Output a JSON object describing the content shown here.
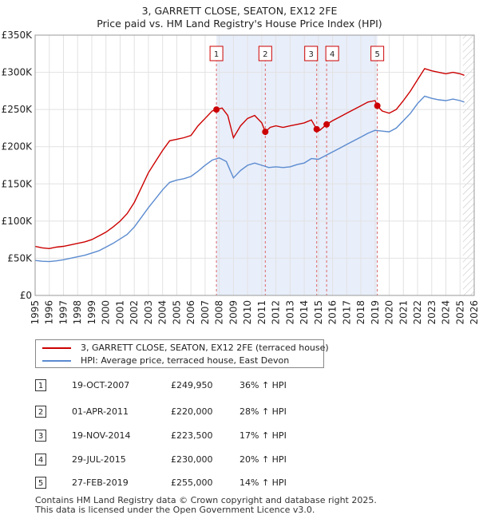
{
  "chart_data": {
    "type": "line",
    "title": "3, GARRETT CLOSE, SEATON, EX12 2FE",
    "subtitle": "Price paid vs. HM Land Registry's House Price Index (HPI)",
    "xlabel": "",
    "ylabel": "",
    "xlim": [
      1995,
      2026
    ],
    "ylim": [
      0,
      350000
    ],
    "x_ticks": [
      "1995",
      "1996",
      "1997",
      "1998",
      "1999",
      "2000",
      "2001",
      "2002",
      "2003",
      "2004",
      "2005",
      "2006",
      "2007",
      "2008",
      "2009",
      "2010",
      "2011",
      "2012",
      "2013",
      "2014",
      "2015",
      "2016",
      "2017",
      "2018",
      "2019",
      "2020",
      "2021",
      "2022",
      "2023",
      "2024",
      "2025",
      "2026"
    ],
    "y_ticks": [
      {
        "value": 0,
        "label": "£0"
      },
      {
        "value": 50000,
        "label": "£50K"
      },
      {
        "value": 100000,
        "label": "£100K"
      },
      {
        "value": 150000,
        "label": "£150K"
      },
      {
        "value": 200000,
        "label": "£200K"
      },
      {
        "value": 250000,
        "label": "£250K"
      },
      {
        "value": 300000,
        "label": "£300K"
      },
      {
        "value": 350000,
        "label": "£350K"
      }
    ],
    "grid": true,
    "series": [
      {
        "name": "3, GARRETT CLOSE, SEATON, EX12 2FE (terraced house)",
        "color": "#cc0000",
        "points": [
          [
            1995.0,
            66000
          ],
          [
            1995.5,
            64000
          ],
          [
            1996.0,
            63000
          ],
          [
            1996.5,
            65000
          ],
          [
            1997.0,
            66000
          ],
          [
            1997.5,
            68000
          ],
          [
            1998.0,
            70000
          ],
          [
            1998.5,
            72000
          ],
          [
            1999.0,
            75000
          ],
          [
            1999.5,
            80000
          ],
          [
            2000.0,
            85000
          ],
          [
            2000.5,
            92000
          ],
          [
            2001.0,
            100000
          ],
          [
            2001.5,
            110000
          ],
          [
            2002.0,
            125000
          ],
          [
            2002.5,
            145000
          ],
          [
            2003.0,
            165000
          ],
          [
            2003.5,
            180000
          ],
          [
            2004.0,
            195000
          ],
          [
            2004.5,
            208000
          ],
          [
            2005.0,
            210000
          ],
          [
            2005.5,
            212000
          ],
          [
            2006.0,
            215000
          ],
          [
            2006.5,
            228000
          ],
          [
            2007.0,
            238000
          ],
          [
            2007.5,
            248000
          ],
          [
            2007.8,
            249950
          ],
          [
            2008.2,
            252000
          ],
          [
            2008.6,
            242000
          ],
          [
            2009.0,
            212000
          ],
          [
            2009.5,
            228000
          ],
          [
            2010.0,
            238000
          ],
          [
            2010.5,
            242000
          ],
          [
            2011.0,
            232000
          ],
          [
            2011.25,
            220000
          ],
          [
            2011.6,
            226000
          ],
          [
            2012.0,
            228000
          ],
          [
            2012.5,
            226000
          ],
          [
            2013.0,
            228000
          ],
          [
            2013.5,
            230000
          ],
          [
            2014.0,
            232000
          ],
          [
            2014.5,
            236000
          ],
          [
            2014.88,
            223500
          ],
          [
            2015.1,
            222000
          ],
          [
            2015.58,
            230000
          ],
          [
            2016.0,
            235000
          ],
          [
            2016.5,
            240000
          ],
          [
            2017.0,
            245000
          ],
          [
            2017.5,
            250000
          ],
          [
            2018.0,
            255000
          ],
          [
            2018.5,
            260000
          ],
          [
            2019.0,
            262000
          ],
          [
            2019.16,
            255000
          ],
          [
            2019.5,
            248000
          ],
          [
            2020.0,
            245000
          ],
          [
            2020.5,
            250000
          ],
          [
            2021.0,
            262000
          ],
          [
            2021.5,
            275000
          ],
          [
            2022.0,
            290000
          ],
          [
            2022.5,
            305000
          ],
          [
            2023.0,
            302000
          ],
          [
            2023.5,
            300000
          ],
          [
            2024.0,
            298000
          ],
          [
            2024.5,
            300000
          ],
          [
            2025.0,
            298000
          ],
          [
            2025.3,
            296000
          ]
        ]
      },
      {
        "name": "HPI: Average price, terraced house, East Devon",
        "color": "#5b8bd0",
        "points": [
          [
            1995.0,
            47000
          ],
          [
            1995.5,
            46000
          ],
          [
            1996.0,
            45500
          ],
          [
            1996.5,
            46500
          ],
          [
            1997.0,
            48000
          ],
          [
            1997.5,
            50000
          ],
          [
            1998.0,
            52000
          ],
          [
            1998.5,
            54000
          ],
          [
            1999.0,
            57000
          ],
          [
            1999.5,
            60000
          ],
          [
            2000.0,
            65000
          ],
          [
            2000.5,
            70000
          ],
          [
            2001.0,
            76000
          ],
          [
            2001.5,
            82000
          ],
          [
            2002.0,
            92000
          ],
          [
            2002.5,
            105000
          ],
          [
            2003.0,
            118000
          ],
          [
            2003.5,
            130000
          ],
          [
            2004.0,
            142000
          ],
          [
            2004.5,
            152000
          ],
          [
            2005.0,
            155000
          ],
          [
            2005.5,
            157000
          ],
          [
            2006.0,
            160000
          ],
          [
            2006.5,
            167000
          ],
          [
            2007.0,
            175000
          ],
          [
            2007.5,
            182000
          ],
          [
            2008.0,
            185000
          ],
          [
            2008.5,
            180000
          ],
          [
            2009.0,
            158000
          ],
          [
            2009.5,
            168000
          ],
          [
            2010.0,
            175000
          ],
          [
            2010.5,
            178000
          ],
          [
            2011.0,
            175000
          ],
          [
            2011.5,
            172000
          ],
          [
            2012.0,
            173000
          ],
          [
            2012.5,
            172000
          ],
          [
            2013.0,
            173000
          ],
          [
            2013.5,
            176000
          ],
          [
            2014.0,
            178000
          ],
          [
            2014.5,
            184000
          ],
          [
            2015.0,
            183000
          ],
          [
            2015.5,
            188000
          ],
          [
            2016.0,
            193000
          ],
          [
            2016.5,
            198000
          ],
          [
            2017.0,
            203000
          ],
          [
            2017.5,
            208000
          ],
          [
            2018.0,
            213000
          ],
          [
            2018.5,
            218000
          ],
          [
            2019.0,
            222000
          ],
          [
            2019.5,
            221000
          ],
          [
            2020.0,
            220000
          ],
          [
            2020.5,
            225000
          ],
          [
            2021.0,
            235000
          ],
          [
            2021.5,
            245000
          ],
          [
            2022.0,
            258000
          ],
          [
            2022.5,
            268000
          ],
          [
            2023.0,
            265000
          ],
          [
            2023.5,
            263000
          ],
          [
            2024.0,
            262000
          ],
          [
            2024.5,
            264000
          ],
          [
            2025.0,
            262000
          ],
          [
            2025.3,
            260000
          ]
        ]
      }
    ],
    "shaded_region": {
      "from": 2007.8,
      "to": 2019.16
    },
    "hatched_region": {
      "from": 2025.2,
      "to": 2026.0
    },
    "sales": [
      {
        "label": "1",
        "x": 2007.8,
        "price": 249950
      },
      {
        "label": "2",
        "x": 2011.25,
        "price": 220000
      },
      {
        "label": "3",
        "x": 2014.88,
        "price": 223500
      },
      {
        "label": "4",
        "x": 2015.58,
        "price": 230000
      },
      {
        "label": "5",
        "x": 2019.16,
        "price": 255000
      }
    ]
  },
  "legend": {
    "property": "3, GARRETT CLOSE, SEATON, EX12 2FE (terraced house)",
    "hpi": "HPI: Average price, terraced house, East Devon"
  },
  "transactions": [
    {
      "num": "1",
      "date": "19-OCT-2007",
      "price": "£249,950",
      "hpi": "36% ↑ HPI"
    },
    {
      "num": "2",
      "date": "01-APR-2011",
      "price": "£220,000",
      "hpi": "28% ↑ HPI"
    },
    {
      "num": "3",
      "date": "19-NOV-2014",
      "price": "£223,500",
      "hpi": "17% ↑ HPI"
    },
    {
      "num": "4",
      "date": "29-JUL-2015",
      "price": "£230,000",
      "hpi": "20% ↑ HPI"
    },
    {
      "num": "5",
      "date": "27-FEB-2019",
      "price": "£255,000",
      "hpi": "14% ↑ HPI"
    }
  ],
  "footer": {
    "line1": "Contains HM Land Registry data © Crown copyright and database right 2025.",
    "line2": "This data is licensed under the Open Government Licence v3.0."
  }
}
